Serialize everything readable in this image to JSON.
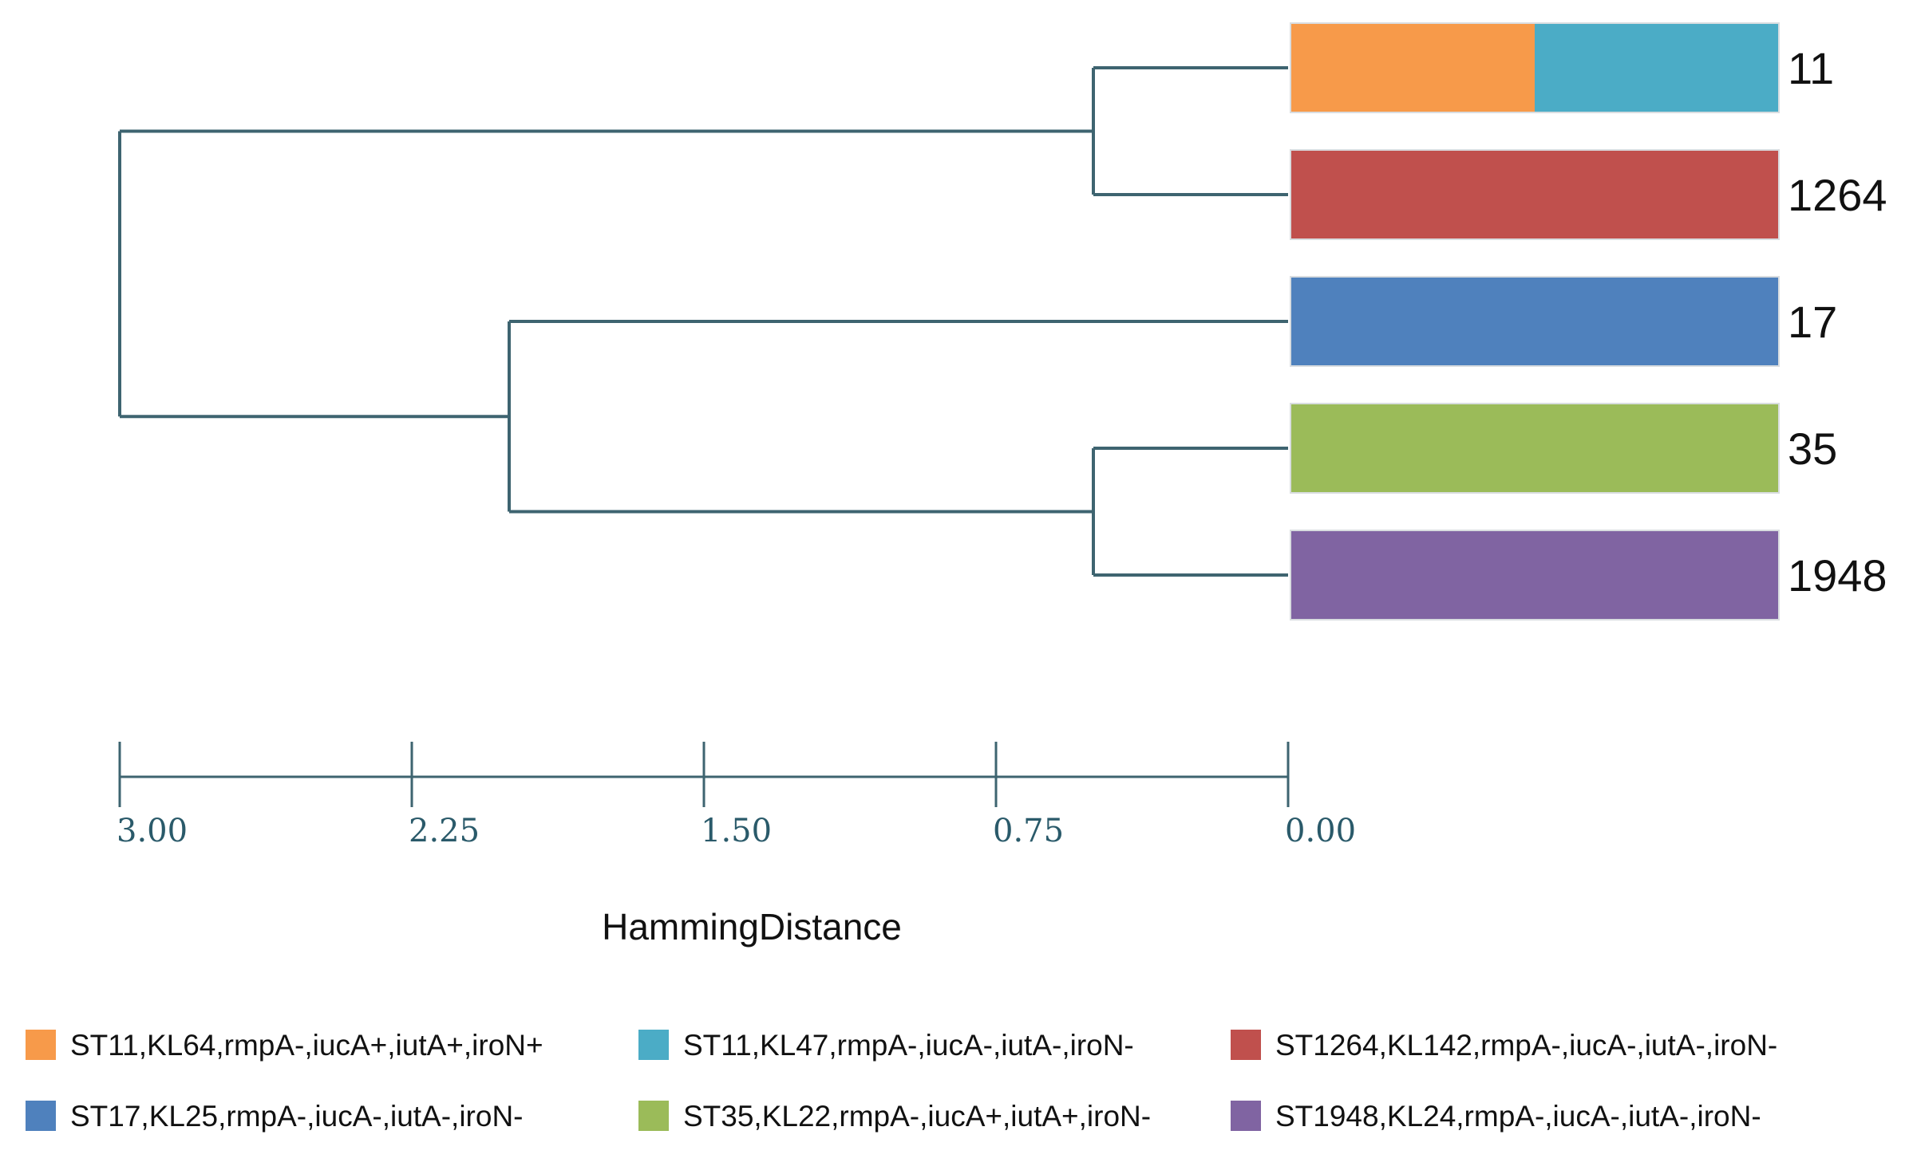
{
  "chart_data": {
    "type": "dendrogram",
    "xlabel": "HammingDistance",
    "xlim": [
      3.0,
      0.0
    ],
    "ticks": [
      {
        "value": 3.0,
        "label": "3.00"
      },
      {
        "value": 2.25,
        "label": "2.25"
      },
      {
        "value": 1.5,
        "label": "1.50"
      },
      {
        "value": 0.75,
        "label": "0.75"
      },
      {
        "value": 0.0,
        "label": "0.00"
      }
    ],
    "leaves": [
      {
        "label": "11",
        "segments": [
          {
            "legend": "ST11,KL64,rmpA-,iucA+,iutA+,iroN+",
            "fraction": 0.5
          },
          {
            "legend": "ST11,KL47,rmpA-,iucA-,iutA-,iroN-",
            "fraction": 0.5
          }
        ]
      },
      {
        "label": "1264",
        "segments": [
          {
            "legend": "ST1264,KL142,rmpA-,iucA-,iutA-,iroN-",
            "fraction": 1.0
          }
        ]
      },
      {
        "label": "17",
        "segments": [
          {
            "legend": "ST17,KL25,rmpA-,iucA-,iutA-,iroN-",
            "fraction": 1.0
          }
        ]
      },
      {
        "label": "35",
        "segments": [
          {
            "legend": "ST35,KL22,rmpA-,iucA+,iutA+,iroN-",
            "fraction": 1.0
          }
        ]
      },
      {
        "label": "1948",
        "segments": [
          {
            "legend": "ST1948,KL24,rmpA-,iucA-,iutA-,iroN-",
            "fraction": 1.0
          }
        ]
      }
    ],
    "clusters": [
      {
        "name": "11-1264",
        "height": 0.5,
        "children": [
          "11",
          "1264"
        ]
      },
      {
        "name": "35-1948",
        "height": 0.5,
        "children": [
          "35",
          "1948"
        ]
      },
      {
        "name": "17-35-1948",
        "height": 2.0,
        "children": [
          "17",
          "35-1948"
        ]
      },
      {
        "name": "root",
        "height": 3.0,
        "children": [
          "11-1264",
          "17-35-1948"
        ]
      }
    ],
    "legend": [
      {
        "label": "ST11,KL64,rmpA-,iucA+,iutA+,iroN+",
        "color": "#f79a4a"
      },
      {
        "label": "ST11,KL47,rmpA-,iucA-,iutA-,iroN-",
        "color": "#4bacc6"
      },
      {
        "label": "ST1264,KL142,rmpA-,iucA-,iutA-,iroN-",
        "color": "#c0504d"
      },
      {
        "label": "ST17,KL25,rmpA-,iucA-,iutA-,iroN-",
        "color": "#4f81bd"
      },
      {
        "label": "ST35,KL22,rmpA-,iucA+,iutA+,iroN-",
        "color": "#9bbb59"
      },
      {
        "label": "ST1948,KL24,rmpA-,iucA-,iutA-,iroN-",
        "color": "#8064a2"
      }
    ]
  }
}
